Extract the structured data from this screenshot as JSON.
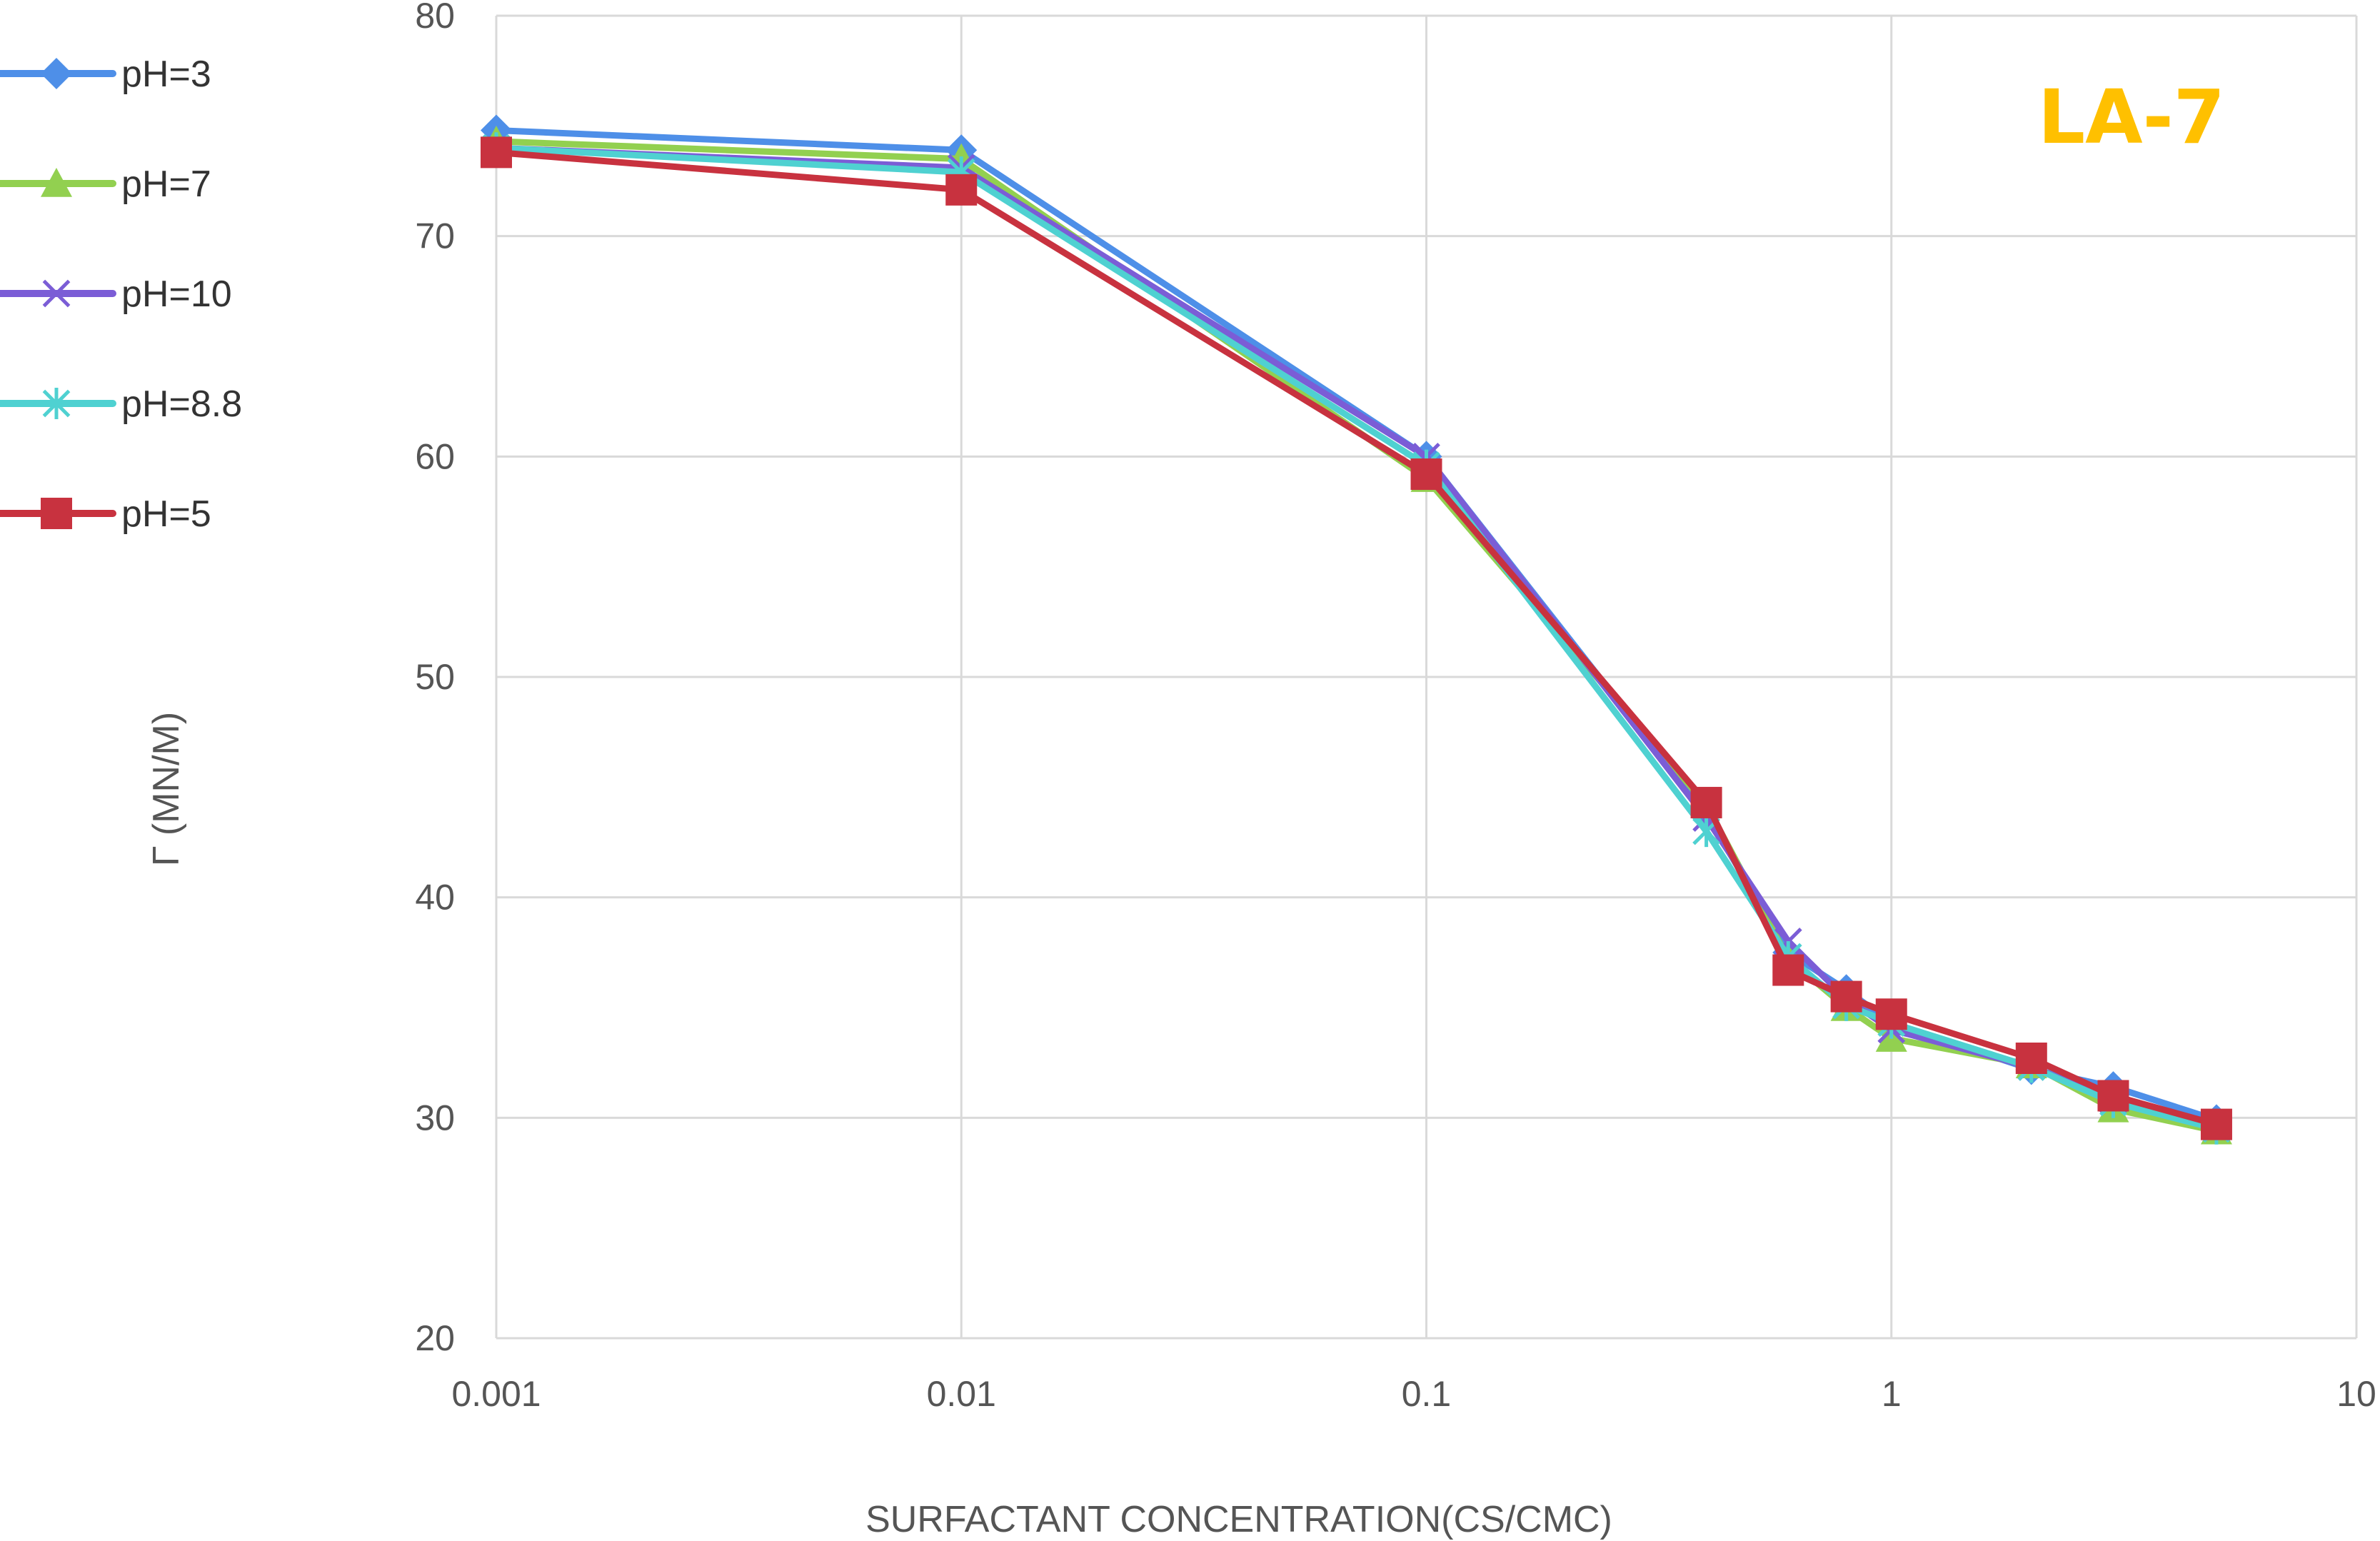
{
  "chart_data": {
    "type": "line",
    "title": "",
    "xlabel": "SURFACTANT CONCENTRATION(CS/CMC)",
    "ylabel": "Γ (MN/M)",
    "x_scale": "log",
    "xlim": [
      0.001,
      10
    ],
    "ylim": [
      20,
      80
    ],
    "x_ticks": [
      "0.001",
      "0.01",
      "0.1",
      "1",
      "10"
    ],
    "y_ticks": [
      "20",
      "30",
      "40",
      "50",
      "60",
      "70",
      "80"
    ],
    "grid": true,
    "legend_position": "left",
    "annotation": {
      "text": "LA-7",
      "color": "#FFC000"
    },
    "x": [
      0.001,
      0.01,
      0.1,
      0.4,
      0.6,
      0.8,
      1,
      2,
      3,
      5
    ],
    "series": [
      {
        "name": "pH=3",
        "color": "#4E8FE8",
        "marker": "diamond",
        "values": [
          74.8,
          73.9,
          60.0,
          43.8,
          37.5,
          35.8,
          34.3,
          32.2,
          31.4,
          29.9
        ]
      },
      {
        "name": "pH=7",
        "color": "#92D050",
        "marker": "triangle",
        "values": [
          74.3,
          73.5,
          59.0,
          44.2,
          37.2,
          35.0,
          33.6,
          32.4,
          30.4,
          29.4
        ]
      },
      {
        "name": "pH=10",
        "color": "#7B5DD6",
        "marker": "x",
        "values": [
          74.0,
          73.1,
          60.0,
          43.6,
          38.0,
          35.4,
          34.0,
          32.3,
          30.8,
          29.6
        ]
      },
      {
        "name": "pH=8.8",
        "color": "#4FD1D1",
        "marker": "asterisk",
        "values": [
          74.0,
          72.9,
          59.6,
          43.0,
          37.3,
          35.1,
          34.3,
          32.3,
          30.7,
          29.5
        ]
      },
      {
        "name": "pH=5",
        "color": "#C8323F",
        "marker": "square",
        "values": [
          73.8,
          72.1,
          59.2,
          44.3,
          36.7,
          35.5,
          34.7,
          32.7,
          31.0,
          29.7
        ]
      }
    ]
  }
}
